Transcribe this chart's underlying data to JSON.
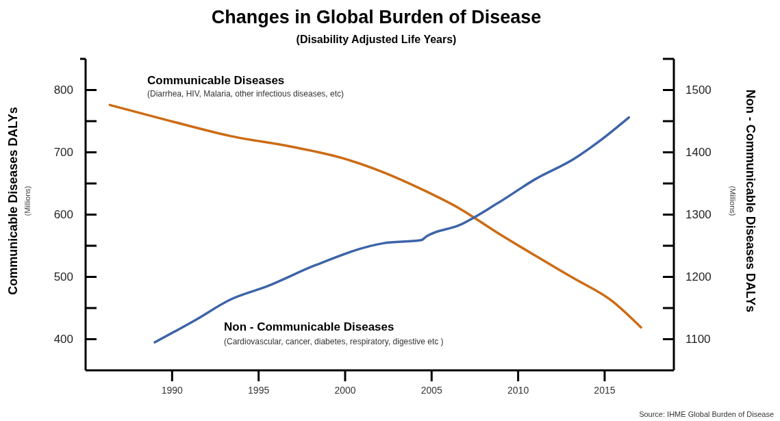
{
  "chart_data": {
    "type": "line",
    "title": "Changes in Global Burden of Disease",
    "subtitle": "(Disability Adjusted Life Years)",
    "ylabel": "Communicable Diseases DALYs",
    "y2label": "Non - Communicable Diseases DALYs",
    "xlim": [
      1985,
      2019
    ],
    "xticks": [
      1990,
      1995,
      2000,
      2005,
      2010,
      2015
    ],
    "ylim": [
      350,
      850
    ],
    "yticks": [
      400,
      {
        "value": 450,
        "label": null
      },
      500,
      {
        "value": 550,
        "label": null
      },
      600,
      {
        "value": 650,
        "label": null
      },
      700,
      {
        "value": 750,
        "label": null
      },
      800
    ],
    "y2lim": [
      1050,
      1550
    ],
    "y2ticks": [
      1100,
      {
        "value": 1150,
        "label": null
      },
      1200,
      {
        "value": 1250,
        "label": null
      },
      1300,
      {
        "value": 1350,
        "label": null
      },
      1400,
      {
        "value": 1450,
        "label": null
      },
      1500
    ],
    "grid": false,
    "series": [
      {
        "name": "Communicable Diseases",
        "color": "#cc6b14",
        "x": [
          1986.4,
          1989.8,
          1993.4,
          1996.9,
          1999.8,
          2002.2,
          2004.4,
          2006.6,
          2008.8,
          2011.0,
          2013.2,
          2015.4,
          2017.1
        ],
        "values": [
          776,
          751,
          726,
          709,
          691,
          668,
          641,
          610,
          571,
          534,
          498,
          462,
          419
        ]
      },
      {
        "name": "Non - Communicable Diseases",
        "color": "#3d64a8",
        "axis": "y2",
        "x": [
          1989.0,
          1991.3,
          1993.4,
          1995.5,
          1998.3,
          2002.2,
          2004.4,
          2004.7,
          2006.6,
          2008.8,
          2011.0,
          2013.2,
          2014.7,
          2016.4
        ],
        "values": [
          1095,
          1130,
          1164,
          1185,
          1219,
          1254,
          1259,
          1265,
          1283,
          1318,
          1357,
          1389,
          1418,
          1456
        ]
      }
    ],
    "annotations": [
      "(Diarrhea, HIV, Malaria, other infectious diseases, etc)",
      "(Cardiovascular, cancer, diabetes, respiratory, digestive etc )",
      "(Millions)",
      "(Millions)",
      "Source: IHME Global Burden of Disease"
    ]
  }
}
